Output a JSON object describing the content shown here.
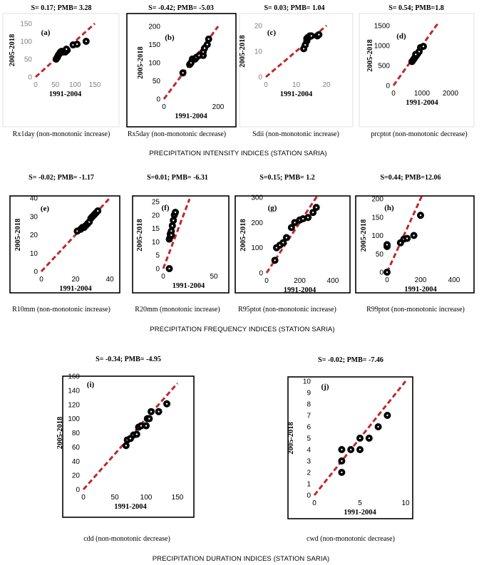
{
  "sections": [
    {
      "title": "PRECIPITATION INTENSITY INDICES (STATION SARIA)"
    },
    {
      "title": "PRECIPITATION FREQUENCY INDICES (STATION SARIA)"
    },
    {
      "title": "PRECIPITATION DURATION INDICES (STATION SARIA)"
    }
  ],
  "colors": {
    "point_fill": "#000000",
    "point_center": "#ffffff",
    "reference_line": "#c0272d",
    "gray_tick": "#808080",
    "panel_border": "#000000"
  },
  "chart_data": [
    {
      "type": "scatter",
      "panel": "(a)",
      "stat": "S= 0.17; PMB= 3.28",
      "caption": "Rx1day (non-monotonic increase)",
      "xlabel": "1991-2004",
      "ylabel": "2005-2018",
      "xlim": [
        0,
        150
      ],
      "ylim": [
        0,
        150
      ],
      "xticks": [
        "0",
        "50",
        "100",
        "150"
      ],
      "yticks": [
        "0",
        "50",
        "100",
        "150"
      ],
      "grayTicks": true,
      "border": false,
      "reference_line": "1:1",
      "points": [
        [
          52,
          50
        ],
        [
          55,
          55
        ],
        [
          57,
          60
        ],
        [
          60,
          65
        ],
        [
          63,
          70
        ],
        [
          66,
          72
        ],
        [
          70,
          70
        ],
        [
          75,
          70
        ],
        [
          80,
          75
        ],
        [
          78,
          78
        ],
        [
          95,
          90
        ],
        [
          105,
          92
        ],
        [
          128,
          100
        ]
      ]
    },
    {
      "type": "scatter",
      "panel": "(b)",
      "stat": "S= -0.42; PMB= -5.03",
      "caption": "Rx5day (non-monotonic decrease)",
      "xlabel": "1991-2004",
      "ylabel": "2005-2018",
      "xlim": [
        0,
        200
      ],
      "ylim": [
        0,
        200
      ],
      "xticks": [
        "0",
        "200"
      ],
      "yticks": [
        "0",
        "50",
        "100",
        "150",
        "200"
      ],
      "grayTicks": false,
      "border": true,
      "reference_line": "1:1",
      "points": [
        [
          70,
          72
        ],
        [
          95,
          95
        ],
        [
          100,
          100
        ],
        [
          105,
          110
        ],
        [
          115,
          110
        ],
        [
          120,
          115
        ],
        [
          130,
          120
        ],
        [
          145,
          120
        ],
        [
          145,
          130
        ],
        [
          150,
          140
        ],
        [
          160,
          150
        ],
        [
          165,
          165
        ]
      ]
    },
    {
      "type": "scatter",
      "panel": "(c)",
      "stat": "S= 0.03; PMB= 1.04",
      "caption": "Sdii (non-monotonic increase)",
      "xlabel": "1991-2004",
      "ylabel": "2005-2018",
      "xlim": [
        0,
        20
      ],
      "ylim": [
        0,
        20
      ],
      "xticks": [
        "0",
        "10",
        "20"
      ],
      "yticks": [
        "0",
        "10",
        "20"
      ],
      "grayTicks": true,
      "border": false,
      "reference_line": "1:1",
      "points": [
        [
          12.5,
          11
        ],
        [
          13,
          12.5
        ],
        [
          13.5,
          14
        ],
        [
          13.5,
          15
        ],
        [
          14,
          15.5
        ],
        [
          14.5,
          16
        ],
        [
          15,
          16
        ],
        [
          17,
          16
        ],
        [
          17.5,
          16.5
        ]
      ]
    },
    {
      "type": "scatter",
      "panel": "(d)",
      "stat": "S= 0.54; PMB=1.8",
      "caption": "prcptot (non-monotonic decrease)",
      "xlabel": "1991-2004",
      "ylabel": "2005-2018",
      "xlim": [
        0,
        2000
      ],
      "ylim": [
        0,
        1500
      ],
      "xticks": [
        "0",
        "1000",
        "2000"
      ],
      "yticks": [
        "0",
        "500",
        "1000",
        "1500"
      ],
      "grayTicks": false,
      "border": false,
      "reference_line": "1:1",
      "points": [
        [
          650,
          600
        ],
        [
          700,
          650
        ],
        [
          750,
          700
        ],
        [
          800,
          750
        ],
        [
          850,
          800
        ],
        [
          900,
          850
        ],
        [
          950,
          950
        ],
        [
          1050,
          980
        ],
        [
          780,
          780
        ]
      ]
    },
    {
      "type": "scatter",
      "panel": "(e)",
      "stat": "S= -0.02; PMB= -1.17",
      "caption": "R10mm (non-monotonic increase)",
      "xlabel": "1991-2004",
      "ylabel": "2005-2018",
      "xlim": [
        0,
        40
      ],
      "ylim": [
        0,
        40
      ],
      "xticks": [
        "0",
        "20",
        "40"
      ],
      "yticks": [
        "0",
        "10",
        "20",
        "30",
        "40"
      ],
      "grayTicks": false,
      "border": true,
      "reference_line": "1:1",
      "points": [
        [
          21,
          22
        ],
        [
          23,
          23
        ],
        [
          24,
          24
        ],
        [
          25,
          24
        ],
        [
          26,
          25
        ],
        [
          27,
          26
        ],
        [
          28,
          27
        ],
        [
          29,
          29
        ],
        [
          30,
          30
        ],
        [
          31,
          31
        ],
        [
          32,
          32
        ],
        [
          33,
          33
        ]
      ]
    },
    {
      "type": "scatter",
      "panel": "(f)",
      "stat": "S=0.01; PMB= -6.31",
      "caption": "R20mm (monotonic increase)",
      "xlabel": "1991-2004",
      "ylabel": "2005-2018",
      "xlim": [
        0,
        50
      ],
      "ylim": [
        0,
        25
      ],
      "xticks": [
        "0",
        "50"
      ],
      "yticks": [
        "0",
        "5",
        "10",
        "15",
        "20",
        "25"
      ],
      "grayTicks": false,
      "border": true,
      "reference_line": "1:1",
      "points": [
        [
          6,
          0
        ],
        [
          6,
          11
        ],
        [
          7,
          12
        ],
        [
          7,
          13
        ],
        [
          8,
          14
        ],
        [
          9,
          16
        ],
        [
          10,
          18
        ],
        [
          11,
          20
        ],
        [
          12,
          21
        ],
        [
          8,
          12.5
        ]
      ]
    },
    {
      "type": "scatter",
      "panel": "(g)",
      "stat": "S=0.15; PMB= 1.2",
      "caption": "R95ptot (non-monotonic increase)",
      "xlabel": "1991-2004",
      "ylabel": "2005-2018",
      "xlim": [
        0,
        400
      ],
      "ylim": [
        0,
        300
      ],
      "xticks": [
        "0",
        "200",
        "400"
      ],
      "yticks": [
        "0",
        "100",
        "200",
        "300"
      ],
      "grayTicks": false,
      "border": true,
      "reference_line": "1:1",
      "points": [
        [
          50,
          50
        ],
        [
          60,
          100
        ],
        [
          80,
          110
        ],
        [
          100,
          120
        ],
        [
          120,
          140
        ],
        [
          150,
          180
        ],
        [
          170,
          200
        ],
        [
          200,
          210
        ],
        [
          220,
          215
        ],
        [
          250,
          220
        ],
        [
          280,
          240
        ],
        [
          300,
          260
        ]
      ]
    },
    {
      "type": "scatter",
      "panel": "(h)",
      "stat": "S=0.44; PMB=12.06",
      "caption": "R99ptot (non-monotonic increase)",
      "xlabel": "1991-2004",
      "ylabel": "2005-2018",
      "xlim": [
        0,
        400
      ],
      "ylim": [
        0,
        200
      ],
      "xticks": [
        "0",
        "200",
        "400"
      ],
      "yticks": [
        "0",
        "50",
        "100",
        "150",
        "200"
      ],
      "grayTicks": false,
      "border": true,
      "reference_line": "1:1",
      "points": [
        [
          0,
          0
        ],
        [
          0,
          70
        ],
        [
          0,
          75
        ],
        [
          80,
          80
        ],
        [
          100,
          90
        ],
        [
          120,
          92
        ],
        [
          160,
          100
        ],
        [
          200,
          155
        ]
      ]
    },
    {
      "type": "scatter",
      "panel": "(i)",
      "stat": "S= -0.34; PMB= -4.95",
      "caption": "cdd (non-monotonic decrease)",
      "xlabel": "1991-2004",
      "ylabel": "2005-2018",
      "xlim": [
        0,
        150
      ],
      "ylim": [
        0,
        160
      ],
      "xticks": [
        "0",
        "50",
        "100",
        "150"
      ],
      "yticks": [
        "0",
        "20",
        "40",
        "60",
        "80",
        "100",
        "120",
        "140",
        "160"
      ],
      "grayTicks": false,
      "border": true,
      "reference_line": "1:1",
      "points": [
        [
          68,
          62
        ],
        [
          70,
          70
        ],
        [
          75,
          72
        ],
        [
          80,
          77
        ],
        [
          85,
          78
        ],
        [
          88,
          88
        ],
        [
          92,
          90
        ],
        [
          100,
          90
        ],
        [
          102,
          100
        ],
        [
          105,
          100
        ],
        [
          108,
          110
        ],
        [
          120,
          110
        ],
        [
          133,
          121
        ]
      ]
    },
    {
      "type": "scatter",
      "panel": "(j)",
      "stat": "S= -0.02; PMB= -7.46",
      "caption": "cwd (non-monotonic decrease)",
      "xlabel": "1991-2004",
      "ylabel": "2005-2018",
      "xlim": [
        0,
        10
      ],
      "ylim": [
        0,
        10
      ],
      "xticks": [
        "0",
        "5",
        "10"
      ],
      "yticks": [
        "0",
        "1",
        "2",
        "3",
        "4",
        "5",
        "6",
        "7",
        "8",
        "9",
        "10"
      ],
      "grayTicks": false,
      "border": true,
      "reference_line": "1:1",
      "points": [
        [
          3,
          2
        ],
        [
          3,
          3
        ],
        [
          3,
          4
        ],
        [
          4,
          4
        ],
        [
          5,
          4
        ],
        [
          5,
          5
        ],
        [
          6,
          5
        ],
        [
          7,
          6
        ],
        [
          8,
          7
        ]
      ]
    }
  ]
}
